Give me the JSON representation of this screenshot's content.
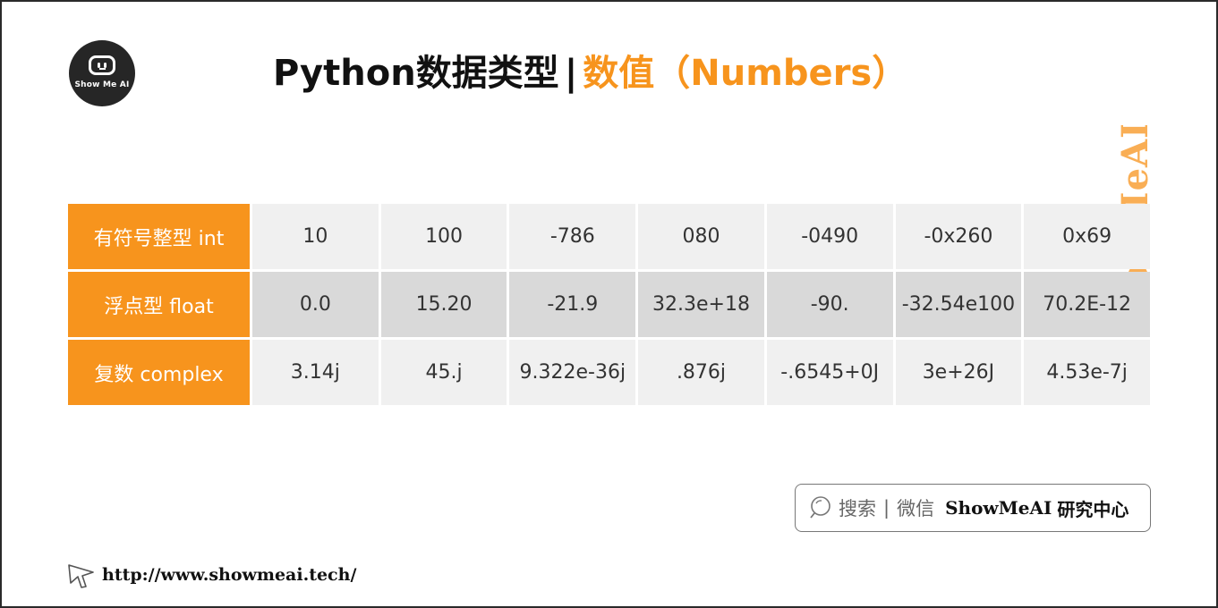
{
  "logo": {
    "text": "Show Me AI"
  },
  "title": {
    "main": "Python数据类型",
    "separator": "|",
    "accent": "数值（Numbers）"
  },
  "watermark": "ShowMeAI",
  "table": {
    "rows": [
      {
        "header": "有符号整型 int",
        "values": [
          "10",
          "100",
          "-786",
          "080",
          "-0490",
          "-0x260",
          "0x69"
        ]
      },
      {
        "header": "浮点型 float",
        "values": [
          "0.0",
          "15.20",
          "-21.9",
          "32.3e+18",
          "-90.",
          "-32.54e100",
          "70.2E-12"
        ]
      },
      {
        "header": "复数 complex",
        "values": [
          "3.14j",
          "45.j",
          "9.322e-36j",
          ".876j",
          "-.6545+0J",
          "3e+26J",
          "4.53e-7j"
        ]
      }
    ]
  },
  "search_badge": {
    "search_label": "搜索",
    "divider": "|",
    "wechat_label": "微信",
    "brand": "ShowMeAI",
    "lab": "研究中心"
  },
  "footer": {
    "url": "http://www.showmeai.tech/"
  },
  "colors": {
    "accent": "#f7941d",
    "row_light": "#f0f0f0",
    "row_dark": "#d9d9d9"
  }
}
